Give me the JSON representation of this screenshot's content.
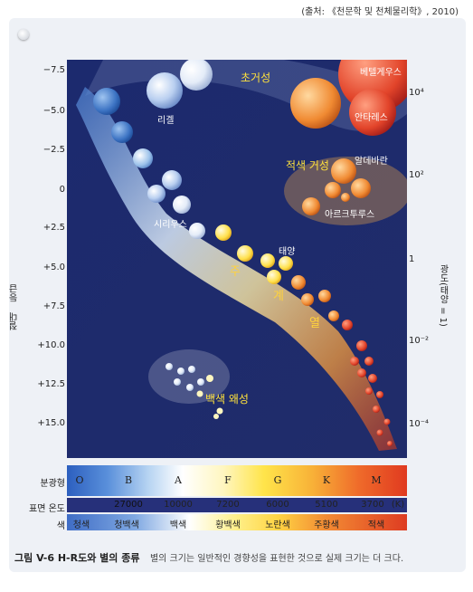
{
  "source_note": "(출처: 《천문학 및 천체물리학》, 2010)",
  "y_left": {
    "title": "절대 등급",
    "ticks": [
      "−7.5",
      "−5.0",
      "−2.5",
      "0",
      "+2.5",
      "+5.0",
      "+7.5",
      "+10.0",
      "+12.5",
      "+15.0"
    ]
  },
  "y_right": {
    "title": "광도(태양 = 1)",
    "ticks": [
      "10⁴",
      "10²",
      "1",
      "10⁻²",
      "10⁻⁴"
    ]
  },
  "regions": {
    "supergiants": "초거성",
    "red_giants": "적색 거성",
    "main_sequence": [
      "주",
      "계",
      "열"
    ],
    "white_dwarfs": "백색 왜성"
  },
  "stars": {
    "rigel": "리겔",
    "betelgeuse": "베텔게우스",
    "antares": "안타레스",
    "aldebaran": "알데바란",
    "arcturus": "아르크투루스",
    "sirius": "시리우스",
    "sun": "태양"
  },
  "spectral": {
    "row_label": "분광형",
    "classes": [
      "O",
      "B",
      "A",
      "F",
      "G",
      "K",
      "M"
    ]
  },
  "temperature": {
    "row_label": "표면 온도",
    "values": [
      "27000",
      "10000",
      "7200",
      "6000",
      "5100",
      "3700"
    ],
    "unit": "(K)"
  },
  "colors": {
    "row_label": "색",
    "names": [
      "청색",
      "청백색",
      "백색",
      "황백색",
      "노란색",
      "주황색",
      "적색"
    ]
  },
  "caption": {
    "figure": "그림 V-6  H-R도와 별의 종류",
    "text": "별의 크기는 일반적인 경향성을 표현한 것으로 실제 크기는 더 크다."
  }
}
